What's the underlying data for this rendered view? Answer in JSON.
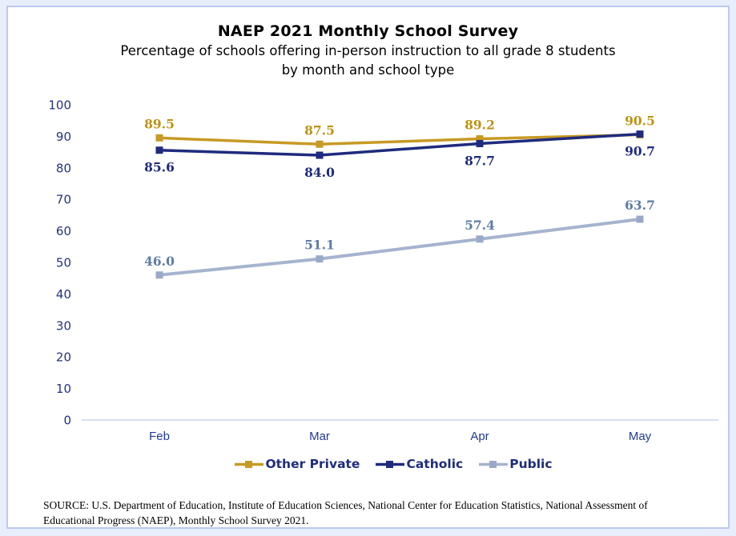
{
  "frame": {
    "outer_background": "#e9eefc",
    "border_color": "#bdc9f1",
    "panel_background": "#ffffff",
    "axis_line_color": "#c8d4f0",
    "tick_label_color": "#243283",
    "month_label_color": "#213a96",
    "legend_text_color": "#1f2c7d"
  },
  "chart_data": {
    "type": "line",
    "title": "NAEP 2021 Monthly School Survey",
    "subtitle_lines": [
      "Percentage of schools offering in-person instruction to all grade 8 students",
      "by month and school type"
    ],
    "categories": [
      "Feb",
      "Mar",
      "Apr",
      "May"
    ],
    "series": [
      {
        "name": "Other Private",
        "values": [
          89.5,
          87.5,
          89.2,
          90.5
        ],
        "color": "#c79a24",
        "marker_color": "#c79a24",
        "label_color": "#bd9213",
        "label_position": "above",
        "line_width": 3.5
      },
      {
        "name": "Catholic",
        "values": [
          85.6,
          84.0,
          87.7,
          90.7
        ],
        "color": "#1f2b7d",
        "marker_color": "#1f2b7d",
        "label_color": "#1f2b7d",
        "label_position": "below",
        "line_width": 3.5
      },
      {
        "name": "Public",
        "values": [
          46.0,
          51.1,
          57.4,
          63.7
        ],
        "color": "#a6b3ce",
        "marker_color": "#99aac8",
        "label_color": "#5e7ba6",
        "label_position": "above",
        "line_width": 4
      }
    ],
    "ylim": [
      0,
      100
    ],
    "yticks": [
      0,
      10,
      20,
      30,
      40,
      50,
      60,
      70,
      80,
      90,
      100
    ],
    "xlabel": "",
    "ylabel": "",
    "grid": false,
    "legend_position": "bottom",
    "marker": "square",
    "source_lines": [
      "SOURCE: U.S. Department of Education, Institute of Education Sciences, National Center for Education Statistics, National Assessment of",
      "Educational Progress (NAEP), Monthly School Survey 2021."
    ]
  }
}
